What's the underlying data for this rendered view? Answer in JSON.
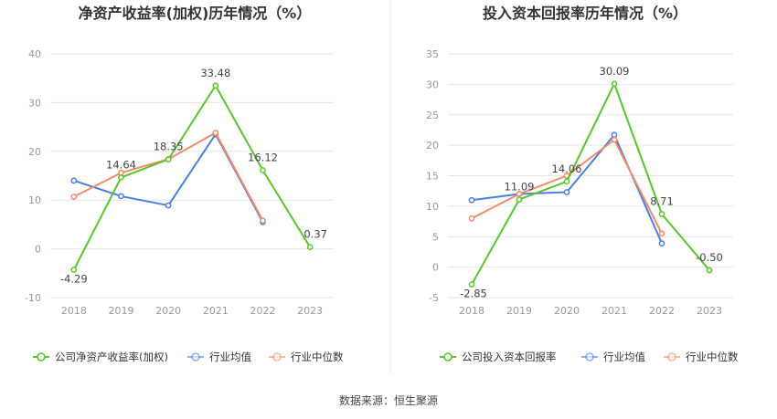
{
  "chart_data": [
    {
      "type": "line",
      "title": "净资产收益率(加权)历年情况（%）",
      "categories": [
        "2018",
        "2019",
        "2020",
        "2021",
        "2022",
        "2023"
      ],
      "yticks": [
        40,
        30,
        20,
        10,
        0,
        -10
      ],
      "ylim": [
        -10,
        40
      ],
      "grid": true,
      "legend_position": "bottom",
      "series": [
        {
          "name": "公司净资产收益率(加权)",
          "color": "#5bc32e",
          "values": [
            -4.29,
            14.64,
            18.35,
            33.48,
            16.12,
            0.37
          ],
          "labels": [
            "-4.29",
            "14.64",
            "18.35",
            "33.48",
            "16.12",
            "0.37"
          ]
        },
        {
          "name": "行业均值",
          "color": "#4a7fdc",
          "values": [
            14.0,
            10.8,
            8.9,
            23.5,
            5.5,
            null
          ]
        },
        {
          "name": "行业中位数",
          "color": "#f28b6a",
          "values": [
            10.7,
            15.6,
            18.4,
            23.8,
            5.8,
            null
          ]
        }
      ]
    },
    {
      "type": "line",
      "title": "投入资本回报率历年情况（%）",
      "categories": [
        "2018",
        "2019",
        "2020",
        "2021",
        "2022",
        "2023"
      ],
      "yticks": [
        35,
        30,
        25,
        20,
        15,
        10,
        5,
        0,
        -5
      ],
      "ylim": [
        -5,
        35
      ],
      "grid": true,
      "legend_position": "bottom",
      "series": [
        {
          "name": "公司投入资本回报率",
          "color": "#5bc32e",
          "values": [
            -2.85,
            11.09,
            14.06,
            30.09,
            8.71,
            -0.5
          ],
          "labels": [
            "-2.85",
            "11.09",
            "14.06",
            "30.09",
            "8.71",
            "-0.50"
          ]
        },
        {
          "name": "行业均值",
          "color": "#4a7fdc",
          "values": [
            11.0,
            12.0,
            12.3,
            21.7,
            3.9,
            null
          ]
        },
        {
          "name": "行业中位数",
          "color": "#f28b6a",
          "values": [
            8.0,
            12.0,
            15.0,
            20.9,
            5.5,
            null
          ]
        }
      ]
    }
  ],
  "footer": {
    "source": "数据来源：恒生聚源"
  }
}
